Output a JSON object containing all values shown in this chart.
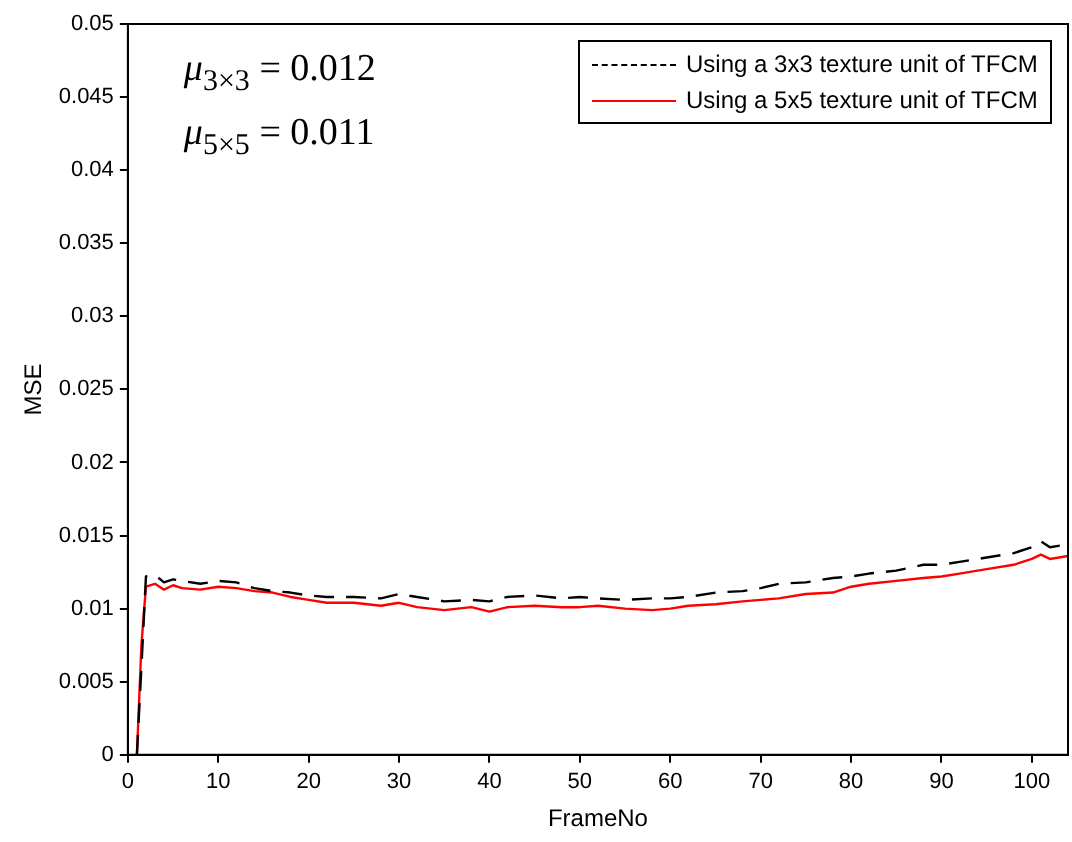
{
  "chart_data": {
    "type": "line",
    "xlabel": "FrameNo",
    "ylabel": "MSE",
    "x": [
      1,
      1.5,
      2,
      3,
      4,
      5,
      6,
      8,
      10,
      12,
      14,
      16,
      18,
      20,
      22,
      25,
      28,
      30,
      32,
      35,
      38,
      40,
      42,
      45,
      48,
      50,
      52,
      55,
      58,
      60,
      62,
      65,
      68,
      70,
      72,
      75,
      78,
      80,
      82,
      85,
      88,
      90,
      92,
      95,
      98,
      100,
      101,
      102,
      104
    ],
    "series": [
      {
        "name": "Using a 3x3 texture unit of TFCM",
        "color": "#000000",
        "line_style": "dashed",
        "values": [
          0,
          0.006,
          0.0122,
          0.0123,
          0.0118,
          0.012,
          0.0119,
          0.0117,
          0.0119,
          0.0118,
          0.0114,
          0.0112,
          0.0111,
          0.0109,
          0.0108,
          0.0108,
          0.0107,
          0.011,
          0.0108,
          0.0105,
          0.0106,
          0.0105,
          0.0108,
          0.0109,
          0.0107,
          0.0108,
          0.0107,
          0.0106,
          0.0107,
          0.0107,
          0.0108,
          0.0111,
          0.0112,
          0.0114,
          0.0117,
          0.0118,
          0.0121,
          0.0122,
          0.0124,
          0.0126,
          0.013,
          0.013,
          0.0132,
          0.0135,
          0.0138,
          0.0142,
          0.0146,
          0.0142,
          0.0144
        ]
      },
      {
        "name": "Using a 5x5 texture unit of TFCM",
        "color": "#ff0000",
        "line_style": "solid",
        "values": [
          0,
          0.0075,
          0.0115,
          0.0117,
          0.0113,
          0.0116,
          0.0114,
          0.0113,
          0.0115,
          0.0114,
          0.0112,
          0.0111,
          0.0108,
          0.0106,
          0.0104,
          0.0104,
          0.0102,
          0.0104,
          0.0101,
          0.0099,
          0.0101,
          0.0098,
          0.0101,
          0.0102,
          0.0101,
          0.0101,
          0.0102,
          0.01,
          0.0099,
          0.01,
          0.0102,
          0.0103,
          0.0105,
          0.0106,
          0.0107,
          0.011,
          0.0111,
          0.0115,
          0.0117,
          0.0119,
          0.0121,
          0.0122,
          0.0124,
          0.0127,
          0.013,
          0.0134,
          0.0137,
          0.0134,
          0.0136
        ]
      }
    ],
    "xlim": [
      0,
      104
    ],
    "xticks": [
      0,
      10,
      20,
      30,
      40,
      50,
      60,
      70,
      80,
      90,
      100
    ],
    "ylim": [
      0,
      0.05
    ],
    "yticks": [
      0,
      0.005,
      0.01,
      0.015,
      0.02,
      0.025,
      0.03,
      0.035,
      0.04,
      0.045,
      0.05
    ],
    "grid": false,
    "legend": "top right",
    "marker": "none",
    "annotations": [
      "μ$_{3×3}$ = 0.012",
      "μ$_{5×5}$ = 0.011"
    ]
  }
}
